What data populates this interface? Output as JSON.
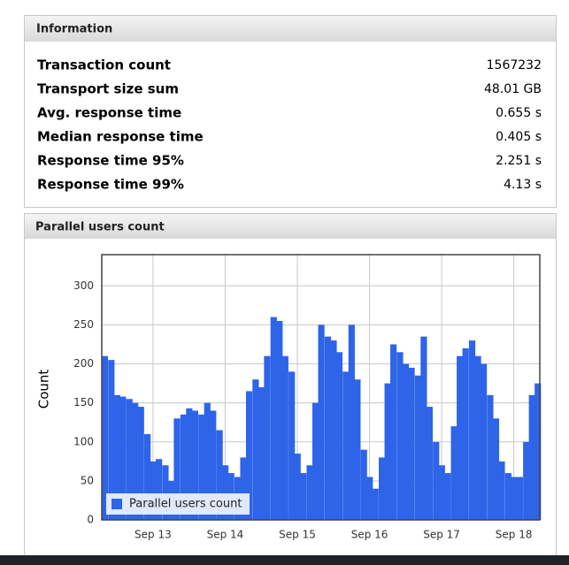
{
  "information": {
    "title": "Information",
    "rows": [
      {
        "label": "Transaction count",
        "value": "1567232"
      },
      {
        "label": "Transport size sum",
        "value": "48.01 GB"
      },
      {
        "label": "Avg. response time",
        "value": "0.655 s"
      },
      {
        "label": "Median response time",
        "value": "0.405 s"
      },
      {
        "label": "Response time 95%",
        "value": "2.251 s"
      },
      {
        "label": "Response time 99%",
        "value": "4.13 s"
      }
    ]
  },
  "chart_panel": {
    "title": "Parallel users count"
  },
  "chart_data": {
    "type": "bar",
    "y_label": "Count",
    "x": [
      12.33,
      12.42,
      12.5,
      12.58,
      12.67,
      12.75,
      12.83,
      12.92,
      13,
      13.08,
      13.17,
      13.25,
      13.33,
      13.42,
      13.5,
      13.58,
      13.67,
      13.75,
      13.83,
      13.92,
      14,
      14.08,
      14.17,
      14.25,
      14.33,
      14.42,
      14.5,
      14.58,
      14.67,
      14.75,
      14.83,
      14.92,
      15,
      15.08,
      15.17,
      15.25,
      15.33,
      15.42,
      15.5,
      15.58,
      15.67,
      15.75,
      15.83,
      15.92,
      16,
      16.08,
      16.17,
      16.25,
      16.33,
      16.42,
      16.5,
      16.58,
      16.67,
      16.75,
      16.83,
      16.92,
      17,
      17.08,
      17.17,
      17.25,
      17.33,
      17.42,
      17.5,
      17.58,
      17.67,
      17.75,
      17.83,
      17.92,
      18,
      18.08,
      18.17,
      18.25,
      18.33
    ],
    "series": [
      {
        "name": "Parallel users count",
        "color": "#2e64e8",
        "values": [
          210,
          205,
          160,
          158,
          155,
          150,
          145,
          110,
          75,
          78,
          70,
          50,
          130,
          135,
          143,
          140,
          135,
          150,
          140,
          115,
          70,
          60,
          55,
          80,
          165,
          180,
          170,
          210,
          260,
          255,
          210,
          190,
          85,
          60,
          70,
          150,
          250,
          235,
          230,
          215,
          190,
          250,
          180,
          90,
          55,
          40,
          80,
          175,
          225,
          215,
          200,
          195,
          185,
          235,
          145,
          100,
          70,
          60,
          120,
          210,
          220,
          230,
          210,
          200,
          160,
          130,
          75,
          60,
          55,
          55,
          100,
          160,
          175
        ]
      }
    ],
    "xlim": [
      12.29,
      18.36
    ],
    "ylim": [
      0,
      340
    ],
    "xticks": [
      {
        "value": 13,
        "label": "Sep 13"
      },
      {
        "value": 14,
        "label": "Sep 14"
      },
      {
        "value": 15,
        "label": "Sep 15"
      },
      {
        "value": 16,
        "label": "Sep 16"
      },
      {
        "value": 17,
        "label": "Sep 17"
      },
      {
        "value": 18,
        "label": "Sep 18"
      }
    ],
    "yticks": [
      0,
      50,
      100,
      150,
      200,
      250,
      300
    ],
    "bar_width": 0.0833,
    "grid": true,
    "legend": "lower left"
  }
}
